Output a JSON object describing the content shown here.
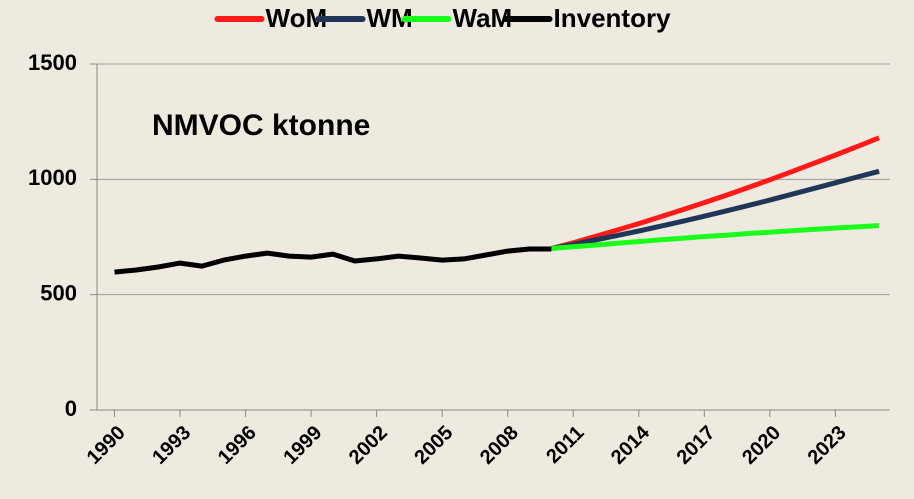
{
  "chart_data": {
    "type": "line",
    "annotation": "NMVOC ktonne",
    "xlim": [
      1989.2,
      2025.5
    ],
    "xticks": [
      1990,
      1993,
      1996,
      1999,
      2002,
      2005,
      2008,
      2011,
      2014,
      2017,
      2020,
      2023
    ],
    "ylim": [
      0,
      1500
    ],
    "yticks": [
      0,
      500,
      1000,
      1500
    ],
    "grid": true,
    "legend": "top",
    "series": [
      {
        "name": "WoM",
        "color": "#ff1a1a",
        "x": [
          2010,
          2011,
          2012,
          2013,
          2014,
          2015,
          2016,
          2017,
          2018,
          2019,
          2020,
          2021,
          2022,
          2023,
          2024,
          2025
        ],
        "values": [
          700,
          725,
          752,
          780,
          808,
          838,
          868,
          899,
          931,
          964,
          998,
          1033,
          1069,
          1105,
          1142,
          1180
        ]
      },
      {
        "name": "WM",
        "color": "#1f3658",
        "x": [
          2010,
          2011,
          2012,
          2013,
          2014,
          2015,
          2016,
          2017,
          2018,
          2019,
          2020,
          2021,
          2022,
          2023,
          2024,
          2025
        ],
        "values": [
          700,
          718,
          737,
          756,
          776,
          797,
          818,
          840,
          863,
          886,
          910,
          935,
          960,
          985,
          1010,
          1035
        ]
      },
      {
        "name": "WaM",
        "color": "#1aff1a",
        "x": [
          2010,
          2011,
          2012,
          2013,
          2014,
          2015,
          2016,
          2017,
          2018,
          2019,
          2020,
          2021,
          2022,
          2023,
          2024,
          2025
        ],
        "values": [
          700,
          708,
          715,
          723,
          730,
          738,
          745,
          752,
          758,
          765,
          771,
          777,
          783,
          789,
          794,
          800
        ]
      },
      {
        "name": "Inventory",
        "color": "#000000",
        "x": [
          1990,
          1991,
          1992,
          1993,
          1994,
          1995,
          1996,
          1997,
          1998,
          1999,
          2000,
          2001,
          2002,
          2003,
          2004,
          2005,
          2006,
          2007,
          2008,
          2009,
          2010
        ],
        "values": [
          598,
          607,
          620,
          637,
          624,
          650,
          667,
          680,
          667,
          663,
          676,
          646,
          655,
          667,
          659,
          650,
          655,
          672,
          689,
          698,
          698
        ]
      }
    ]
  }
}
